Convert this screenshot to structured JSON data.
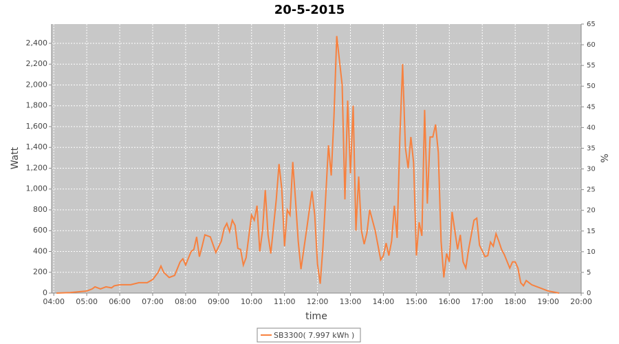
{
  "chart_data": {
    "type": "line",
    "title": "20-5-2015",
    "xlabel": "time",
    "ylabel": "Watt",
    "y2label": "%",
    "x": [
      "04:05",
      "04:30",
      "05:00",
      "05:10",
      "05:15",
      "05:25",
      "05:35",
      "05:45",
      "05:50",
      "06:00",
      "06:20",
      "06:35",
      "06:50",
      "07:00",
      "07:10",
      "07:15",
      "07:20",
      "07:30",
      "07:40",
      "07:50",
      "07:55",
      "08:00",
      "08:10",
      "08:15",
      "08:20",
      "08:25",
      "08:30",
      "08:35",
      "08:45",
      "08:55",
      "09:05",
      "09:10",
      "09:15",
      "09:20",
      "09:25",
      "09:30",
      "09:35",
      "09:40",
      "09:45",
      "09:50",
      "10:00",
      "10:05",
      "10:10",
      "10:15",
      "10:20",
      "10:25",
      "10:30",
      "10:35",
      "10:45",
      "10:50",
      "10:55",
      "11:00",
      "11:05",
      "11:10",
      "11:15",
      "11:20",
      "11:25",
      "11:30",
      "11:40",
      "11:50",
      "11:55",
      "12:00",
      "12:05",
      "12:10",
      "12:20",
      "12:25",
      "12:30",
      "12:35",
      "12:45",
      "12:50",
      "12:55",
      "13:00",
      "13:05",
      "13:10",
      "13:15",
      "13:20",
      "13:25",
      "13:30",
      "13:35",
      "13:45",
      "13:55",
      "14:00",
      "14:05",
      "14:10",
      "14:15",
      "14:20",
      "14:25",
      "14:30",
      "14:35",
      "14:40",
      "14:45",
      "14:50",
      "14:55",
      "15:00",
      "15:05",
      "15:10",
      "15:15",
      "15:20",
      "15:25",
      "15:30",
      "15:35",
      "15:40",
      "15:45",
      "15:50",
      "15:55",
      "16:00",
      "16:05",
      "16:10",
      "16:15",
      "16:20",
      "16:25",
      "16:30",
      "16:35",
      "16:45",
      "16:50",
      "16:55",
      "17:05",
      "17:10",
      "17:15",
      "17:20",
      "17:25",
      "17:30",
      "17:35",
      "17:40",
      "17:50",
      "17:55",
      "18:00",
      "18:05",
      "18:10",
      "18:15",
      "18:20",
      "18:30",
      "18:40",
      "18:50",
      "19:00",
      "19:10",
      "19:20"
    ],
    "series": [
      {
        "name": "SB3300( 7.997 kWh )",
        "color": "#f7813f",
        "values": [
          0,
          5,
          20,
          40,
          60,
          40,
          60,
          50,
          70,
          80,
          80,
          100,
          100,
          130,
          200,
          260,
          200,
          150,
          170,
          300,
          330,
          270,
          400,
          420,
          540,
          350,
          450,
          560,
          540,
          390,
          500,
          620,
          670,
          590,
          700,
          650,
          430,
          420,
          270,
          340,
          750,
          700,
          840,
          400,
          600,
          990,
          560,
          380,
          900,
          1240,
          1000,
          450,
          800,
          750,
          1260,
          900,
          500,
          230,
          600,
          980,
          750,
          280,
          90,
          450,
          1420,
          1130,
          1700,
          2470,
          2000,
          900,
          1850,
          1150,
          1800,
          600,
          1120,
          600,
          470,
          580,
          800,
          600,
          320,
          360,
          480,
          360,
          500,
          840,
          530,
          1500,
          2200,
          1400,
          1200,
          1500,
          1250,
          360,
          680,
          550,
          1760,
          860,
          1500,
          1500,
          1620,
          1350,
          500,
          150,
          380,
          300,
          780,
          600,
          420,
          560,
          300,
          240,
          420,
          700,
          720,
          460,
          350,
          360,
          490,
          450,
          570,
          500,
          420,
          370,
          240,
          300,
          300,
          240,
          100,
          70,
          120,
          80,
          60,
          40,
          20,
          10,
          0
        ]
      }
    ],
    "xlim": [
      "03:56",
      "20:00"
    ],
    "xticks": [
      "04:00",
      "05:00",
      "06:00",
      "07:00",
      "08:00",
      "09:00",
      "10:00",
      "11:00",
      "12:00",
      "13:00",
      "14:00",
      "15:00",
      "16:00",
      "17:00",
      "18:00",
      "19:00",
      "20:00"
    ],
    "ylim": [
      0,
      2585
    ],
    "yticks": [
      0,
      200,
      400,
      600,
      800,
      {
        "value": 1000,
        "label": "1,000"
      },
      {
        "value": 1200,
        "label": "1,200"
      },
      {
        "value": 1400,
        "label": "1,400"
      },
      {
        "value": 1600,
        "label": "1,600"
      },
      {
        "value": 1800,
        "label": "1,800"
      },
      {
        "value": 2000,
        "label": "2,000"
      },
      {
        "value": 2200,
        "label": "2,200"
      },
      {
        "value": 2400,
        "label": "2,400"
      }
    ],
    "y2lim": [
      0,
      65
    ],
    "y2ticks": [
      0,
      5,
      10,
      15,
      20,
      25,
      30,
      35,
      40,
      45,
      50,
      55,
      60,
      65
    ],
    "grid": true
  }
}
